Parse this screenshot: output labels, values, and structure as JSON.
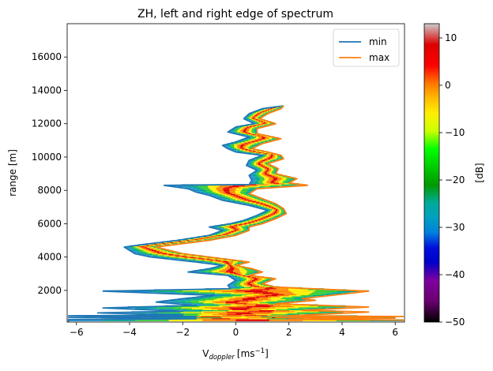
{
  "chart_data": {
    "type": "heatmap",
    "title": "ZH, left and right edge of spectrum",
    "xlabel_main": "V",
    "xlabel_sub": "doppler",
    "xlabel_unit_pre": "[ms",
    "xlabel_unit_sup": "−1",
    "xlabel_unit_post": "]",
    "ylabel": "range [m]",
    "xlim": [
      -6.35,
      6.35
    ],
    "ylim": [
      100,
      18000
    ],
    "xticks": [
      -6,
      -4,
      -2,
      0,
      2,
      4,
      6
    ],
    "xtick_labels": [
      "−6",
      "−4",
      "−2",
      "0",
      "2",
      "4",
      "6"
    ],
    "yticks": [
      2000,
      4000,
      6000,
      8000,
      10000,
      12000,
      14000,
      16000
    ],
    "ytick_labels": [
      "2000",
      "4000",
      "6000",
      "8000",
      "10000",
      "12000",
      "14000",
      "16000"
    ],
    "legend_position": "top-right",
    "series": [
      {
        "name": "min",
        "color": "#1f77b4",
        "points": [
          [
            -6.3,
            120
          ],
          [
            -6.3,
            250
          ],
          [
            -1.5,
            300
          ],
          [
            -6.3,
            380
          ],
          [
            -1.5,
            420
          ],
          [
            -6.3,
            480
          ],
          [
            -2.0,
            520
          ],
          [
            -5.2,
            650
          ],
          [
            -2.0,
            750
          ],
          [
            -5.0,
            950
          ],
          [
            -1.5,
            1100
          ],
          [
            -3.0,
            1300
          ],
          [
            -2.0,
            1500
          ],
          [
            -0.8,
            1700
          ],
          [
            -5.0,
            1950
          ],
          [
            -0.2,
            2100
          ],
          [
            -0.3,
            2300
          ],
          [
            0.0,
            2600
          ],
          [
            -0.3,
            2900
          ],
          [
            -1.8,
            3100
          ],
          [
            -1.0,
            3300
          ],
          [
            -0.5,
            3500
          ],
          [
            -1.5,
            3700
          ],
          [
            -3.2,
            4000
          ],
          [
            -3.8,
            4200
          ],
          [
            -4.0,
            4400
          ],
          [
            -4.2,
            4600
          ],
          [
            -3.5,
            4750
          ],
          [
            -2.2,
            5000
          ],
          [
            -1.0,
            5300
          ],
          [
            -0.5,
            5600
          ],
          [
            -1.0,
            5800
          ],
          [
            -0.2,
            6000
          ],
          [
            0.3,
            6200
          ],
          [
            0.8,
            6500
          ],
          [
            1.2,
            6800
          ],
          [
            0.5,
            7100
          ],
          [
            -0.5,
            7400
          ],
          [
            -1.0,
            7700
          ],
          [
            -1.5,
            7900
          ],
          [
            -1.8,
            8100
          ],
          [
            -2.7,
            8300
          ],
          [
            0.5,
            8350
          ],
          [
            0.6,
            8600
          ],
          [
            0.5,
            8900
          ],
          [
            0.8,
            9200
          ],
          [
            0.4,
            9500
          ],
          [
            0.5,
            9800
          ],
          [
            1.0,
            10100
          ],
          [
            0.0,
            10300
          ],
          [
            -0.3,
            10500
          ],
          [
            -0.5,
            10700
          ],
          [
            0.0,
            10900
          ],
          [
            0.5,
            11200
          ],
          [
            -0.3,
            11500
          ],
          [
            0.0,
            11800
          ],
          [
            0.7,
            12000
          ],
          [
            0.3,
            12300
          ],
          [
            0.5,
            12600
          ],
          [
            1.0,
            12900
          ],
          [
            1.7,
            13050
          ]
        ]
      },
      {
        "name": "max",
        "color": "#ff7f0e",
        "points": [
          [
            6.3,
            150
          ],
          [
            6.3,
            220
          ],
          [
            2.0,
            260
          ],
          [
            6.0,
            330
          ],
          [
            1.5,
            380
          ],
          [
            6.3,
            430
          ],
          [
            2.0,
            480
          ],
          [
            5.0,
            700
          ],
          [
            2.5,
            800
          ],
          [
            5.0,
            1000
          ],
          [
            1.5,
            1200
          ],
          [
            3.0,
            1400
          ],
          [
            2.5,
            1500
          ],
          [
            5.0,
            1950
          ],
          [
            1.5,
            2200
          ],
          [
            1.0,
            2400
          ],
          [
            1.5,
            2700
          ],
          [
            0.5,
            2900
          ],
          [
            1.0,
            3100
          ],
          [
            0.6,
            3300
          ],
          [
            0.0,
            3500
          ],
          [
            0.5,
            3700
          ],
          [
            -1.0,
            4000
          ],
          [
            -2.0,
            4200
          ],
          [
            -2.5,
            4400
          ],
          [
            -3.0,
            4600
          ],
          [
            -2.0,
            4800
          ],
          [
            -1.0,
            5000
          ],
          [
            0.0,
            5300
          ],
          [
            0.5,
            5600
          ],
          [
            0.5,
            5800
          ],
          [
            1.0,
            6000
          ],
          [
            1.5,
            6300
          ],
          [
            1.9,
            6600
          ],
          [
            1.8,
            6900
          ],
          [
            1.5,
            7200
          ],
          [
            1.0,
            7500
          ],
          [
            0.5,
            7800
          ],
          [
            0.8,
            8100
          ],
          [
            2.7,
            8300
          ],
          [
            2.0,
            8450
          ],
          [
            2.3,
            8700
          ],
          [
            1.5,
            9000
          ],
          [
            1.6,
            9300
          ],
          [
            1.2,
            9600
          ],
          [
            1.8,
            9900
          ],
          [
            1.7,
            10100
          ],
          [
            1.2,
            10300
          ],
          [
            0.6,
            10500
          ],
          [
            1.0,
            10800
          ],
          [
            1.7,
            11100
          ],
          [
            0.8,
            11400
          ],
          [
            0.8,
            11700
          ],
          [
            1.5,
            12000
          ],
          [
            0.9,
            12300
          ],
          [
            1.2,
            12600
          ],
          [
            1.7,
            12900
          ],
          [
            1.8,
            13050
          ]
        ]
      }
    ],
    "colorbar": {
      "label": "[dB]",
      "range": [
        -50,
        13
      ],
      "ticks": [
        -50,
        -40,
        -30,
        -20,
        -10,
        0,
        10
      ],
      "tick_labels": [
        "−50",
        "−40",
        "−30",
        "−20",
        "−10",
        "0",
        "10"
      ],
      "colormap": "nipy_spectral"
    }
  }
}
